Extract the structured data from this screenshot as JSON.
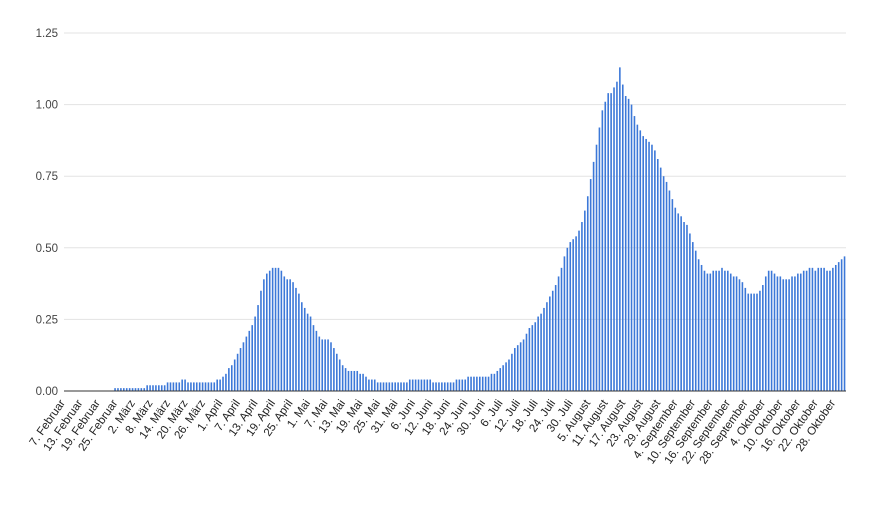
{
  "chart_data": {
    "type": "bar",
    "title": "",
    "xlabel": "",
    "ylabel": "",
    "ylim": [
      0,
      1.25
    ],
    "yticks": [
      "0.00",
      "0.25",
      "0.50",
      "0.75",
      "1.00",
      "1.25"
    ],
    "grid": true,
    "legend": "none",
    "bar_color": "#3c78d8",
    "x_start_date": "2020-02-07",
    "tick_every_days": 6,
    "tick_labels": [
      "7. Februar",
      "13. Februar",
      "19. Februar",
      "25. Februar",
      "2. März",
      "8. März",
      "14. März",
      "20. März",
      "26. März",
      "1. April",
      "7. April",
      "13. April",
      "19. April",
      "25. April",
      "1. Mai",
      "7. Mai",
      "13. Mai",
      "19. Mai",
      "25. Mai",
      "31. Mai",
      "6. Juni",
      "12. Juni",
      "18. Juni",
      "24. Juni",
      "30. Juni",
      "6. Juli",
      "12. Juli",
      "18. Juli",
      "24. Juli",
      "30. Juli",
      "5. August",
      "11. August",
      "17. August",
      "23. August",
      "29. August",
      "4. September",
      "10. September",
      "16. September",
      "22. September",
      "28. September",
      "4. Oktober",
      "10. Oktober",
      "16. Oktober",
      "22. Oktober",
      "28. Oktober"
    ],
    "values": [
      0.0,
      0.0,
      0.0,
      0.0,
      0.0,
      0.0,
      0.0,
      0.0,
      0.0,
      0.0,
      0.0,
      0.0,
      0.0,
      0.0,
      0.0,
      0.0,
      0.0,
      0.01,
      0.01,
      0.01,
      0.01,
      0.01,
      0.01,
      0.01,
      0.01,
      0.01,
      0.01,
      0.01,
      0.02,
      0.02,
      0.02,
      0.02,
      0.02,
      0.02,
      0.02,
      0.03,
      0.03,
      0.03,
      0.03,
      0.03,
      0.04,
      0.04,
      0.03,
      0.03,
      0.03,
      0.03,
      0.03,
      0.03,
      0.03,
      0.03,
      0.03,
      0.03,
      0.04,
      0.04,
      0.05,
      0.06,
      0.08,
      0.09,
      0.11,
      0.13,
      0.15,
      0.17,
      0.19,
      0.21,
      0.23,
      0.26,
      0.3,
      0.35,
      0.39,
      0.41,
      0.42,
      0.43,
      0.43,
      0.43,
      0.42,
      0.4,
      0.39,
      0.39,
      0.38,
      0.36,
      0.34,
      0.31,
      0.29,
      0.27,
      0.26,
      0.23,
      0.21,
      0.19,
      0.18,
      0.18,
      0.18,
      0.17,
      0.15,
      0.13,
      0.11,
      0.09,
      0.08,
      0.07,
      0.07,
      0.07,
      0.07,
      0.06,
      0.06,
      0.05,
      0.04,
      0.04,
      0.04,
      0.03,
      0.03,
      0.03,
      0.03,
      0.03,
      0.03,
      0.03,
      0.03,
      0.03,
      0.03,
      0.03,
      0.04,
      0.04,
      0.04,
      0.04,
      0.04,
      0.04,
      0.04,
      0.04,
      0.03,
      0.03,
      0.03,
      0.03,
      0.03,
      0.03,
      0.03,
      0.03,
      0.04,
      0.04,
      0.04,
      0.04,
      0.05,
      0.05,
      0.05,
      0.05,
      0.05,
      0.05,
      0.05,
      0.05,
      0.06,
      0.06,
      0.07,
      0.08,
      0.09,
      0.1,
      0.11,
      0.13,
      0.15,
      0.16,
      0.17,
      0.18,
      0.2,
      0.22,
      0.23,
      0.24,
      0.26,
      0.27,
      0.29,
      0.31,
      0.33,
      0.35,
      0.37,
      0.4,
      0.43,
      0.47,
      0.5,
      0.52,
      0.53,
      0.54,
      0.56,
      0.59,
      0.63,
      0.68,
      0.74,
      0.8,
      0.86,
      0.92,
      0.98,
      1.01,
      1.04,
      1.04,
      1.06,
      1.08,
      1.13,
      1.07,
      1.03,
      1.02,
      1.0,
      0.96,
      0.93,
      0.91,
      0.89,
      0.88,
      0.87,
      0.86,
      0.84,
      0.81,
      0.78,
      0.75,
      0.73,
      0.7,
      0.67,
      0.64,
      0.62,
      0.61,
      0.59,
      0.58,
      0.55,
      0.52,
      0.49,
      0.46,
      0.44,
      0.42,
      0.41,
      0.41,
      0.42,
      0.42,
      0.42,
      0.43,
      0.42,
      0.42,
      0.41,
      0.4,
      0.4,
      0.39,
      0.38,
      0.36,
      0.34,
      0.34,
      0.34,
      0.34,
      0.35,
      0.37,
      0.4,
      0.42,
      0.42,
      0.41,
      0.4,
      0.4,
      0.39,
      0.39,
      0.39,
      0.4,
      0.4,
      0.41,
      0.41,
      0.42,
      0.42,
      0.43,
      0.43,
      0.42,
      0.43,
      0.43,
      0.43,
      0.42,
      0.42,
      0.43,
      0.44,
      0.45,
      0.46,
      0.47
    ]
  }
}
